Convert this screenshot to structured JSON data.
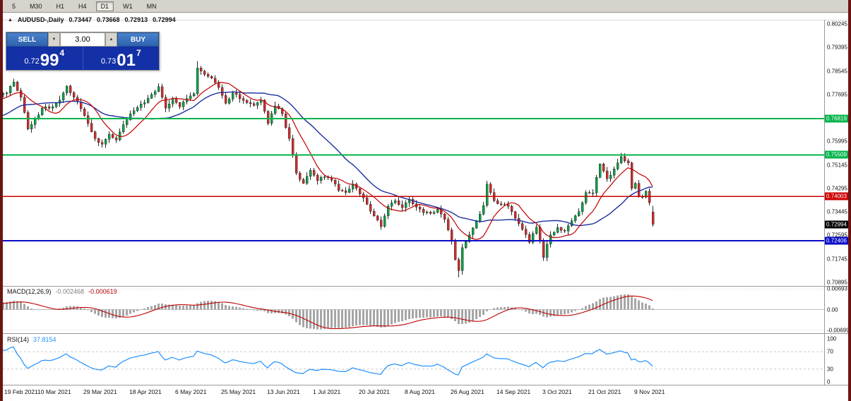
{
  "window": {
    "border_color": "#6b1414"
  },
  "toolbar": {
    "timeframes": [
      "5",
      "M30",
      "H1",
      "H4",
      "D1",
      "W1",
      "MN"
    ],
    "active": "D1"
  },
  "header": {
    "symbol": "AUDUSD-,Daily",
    "open": "0.73447",
    "high": "0.73668",
    "low": "0.72913",
    "close": "0.72994"
  },
  "icons": {
    "collapse_arrow": "▲",
    "spin_down": "▼",
    "spin_up": "▲"
  },
  "trade_panel": {
    "sell_label": "SELL",
    "buy_label": "BUY",
    "volume": "3.00",
    "sell_price": {
      "base": "0.72",
      "big": "99",
      "sup": "4"
    },
    "buy_price": {
      "base": "0.73",
      "big": "01",
      "sup": "7"
    }
  },
  "price_scale": {
    "grid_labels": [
      {
        "text": "0.80245",
        "value": 0.80245
      },
      {
        "text": "0.79395",
        "value": 0.79395
      },
      {
        "text": "0.78545",
        "value": 0.78545
      },
      {
        "text": "0.77695",
        "value": 0.77695
      },
      {
        "text": "0.75995",
        "value": 0.75995
      },
      {
        "text": "0.75145",
        "value": 0.75145
      },
      {
        "text": "0.74295",
        "value": 0.74295
      },
      {
        "text": "0.73445",
        "value": 0.73445
      },
      {
        "text": "0.72595",
        "value": 0.72595
      },
      {
        "text": "0.71745",
        "value": 0.71745
      },
      {
        "text": "0.70895",
        "value": 0.70895
      }
    ],
    "line_badges": [
      {
        "text": "0.76819",
        "value": 0.76819,
        "color": "#00b44a"
      },
      {
        "text": "0.75509",
        "value": 0.75509,
        "color": "#00b44a"
      },
      {
        "text": "0.74003",
        "value": 0.74003,
        "color": "#cc0000"
      },
      {
        "text": "0.72994",
        "value": 0.72994,
        "color": "#000000"
      },
      {
        "text": "0.72406",
        "value": 0.72406,
        "color": "#0a0ac8"
      }
    ]
  },
  "price_lines": [
    {
      "value": 0.76819,
      "color": "#00b44a",
      "width": 2
    },
    {
      "value": 0.75509,
      "color": "#00b44a",
      "width": 2
    },
    {
      "value": 0.74003,
      "color": "#cc0000",
      "width": 1.4
    },
    {
      "value": 0.72406,
      "color": "#0a0ac8",
      "width": 2
    }
  ],
  "indicators": {
    "macd": {
      "label": "MACD(12,26,9)",
      "value_main": "-0.002468",
      "value_signal": "-0.000619",
      "scale": [
        "0.00693",
        "0.00",
        "-0.00699"
      ],
      "fast": 12,
      "slow": 26,
      "smooth": 9,
      "hist_color": "#a6a6a6",
      "signal_color": "#c00000"
    },
    "rsi": {
      "label": "RSI(14)",
      "value": "37.8154",
      "scale": [
        "100",
        "70",
        "30",
        "0"
      ],
      "period": 14,
      "levels": [
        70,
        30
      ],
      "line_color": "#1e90ff"
    }
  },
  "chart_data": {
    "type": "candlestick",
    "title": "AUDUSD-,Daily",
    "y_axis": {
      "min": 0.70895,
      "max": 0.80245,
      "tick_step": 0.0085
    },
    "x_axis": {
      "labels": [
        "19 Feb 2021",
        "10 Mar 2021",
        "29 Mar 2021",
        "18 Apr 2021",
        "6 May 2021",
        "25 May 2021",
        "13 Jun 2021",
        "1 Jul 2021",
        "20 Jul 2021",
        "8 Aug 2021",
        "26 Aug 2021",
        "14 Sep 2021",
        "3 Oct 2021",
        "21 Oct 2021",
        "9 Nov 2021"
      ],
      "bars_per_label": 13
    },
    "bar_count": 184,
    "last_candle": {
      "open": 0.73447,
      "high": 0.73668,
      "low": 0.72913,
      "close": 0.72994
    },
    "extreme_low": {
      "bar": 128,
      "price": 0.7108
    },
    "extreme_high": {
      "bar": 54,
      "price": 0.7891
    },
    "pre_anchors": [
      [
        -28,
        0.768
      ],
      [
        -20,
        0.76
      ],
      [
        -14,
        0.768
      ],
      [
        -9,
        0.774
      ],
      [
        -5,
        0.7755
      ],
      [
        -2,
        0.777
      ]
    ],
    "anchors": [
      [
        0,
        0.7775
      ],
      [
        2,
        0.7815
      ],
      [
        4,
        0.776
      ],
      [
        6,
        0.7645
      ],
      [
        8,
        0.768
      ],
      [
        10,
        0.772
      ],
      [
        13,
        0.7725
      ],
      [
        15,
        0.775
      ],
      [
        17,
        0.78
      ],
      [
        19,
        0.776
      ],
      [
        21,
        0.7718
      ],
      [
        23,
        0.7665
      ],
      [
        25,
        0.761
      ],
      [
        27,
        0.759
      ],
      [
        29,
        0.7625
      ],
      [
        31,
        0.7605
      ],
      [
        33,
        0.766
      ],
      [
        35,
        0.77
      ],
      [
        37,
        0.7722
      ],
      [
        39,
        0.774
      ],
      [
        41,
        0.777
      ],
      [
        43,
        0.7798
      ],
      [
        45,
        0.772
      ],
      [
        47,
        0.7755
      ],
      [
        49,
        0.7725
      ],
      [
        51,
        0.7755
      ],
      [
        53,
        0.7772
      ],
      [
        54,
        0.7865
      ],
      [
        56,
        0.7842
      ],
      [
        58,
        0.7828
      ],
      [
        60,
        0.7795
      ],
      [
        62,
        0.7738
      ],
      [
        64,
        0.7775
      ],
      [
        66,
        0.7755
      ],
      [
        68,
        0.774
      ],
      [
        70,
        0.773
      ],
      [
        72,
        0.775
      ],
      [
        74,
        0.7665
      ],
      [
        76,
        0.7728
      ],
      [
        78,
        0.77
      ],
      [
        80,
        0.761
      ],
      [
        82,
        0.7485
      ],
      [
        84,
        0.7448
      ],
      [
        86,
        0.7495
      ],
      [
        88,
        0.7458
      ],
      [
        90,
        0.7472
      ],
      [
        92,
        0.746
      ],
      [
        94,
        0.7422
      ],
      [
        96,
        0.7415
      ],
      [
        98,
        0.7445
      ],
      [
        100,
        0.741
      ],
      [
        102,
        0.7372
      ],
      [
        104,
        0.733
      ],
      [
        106,
        0.7292
      ],
      [
        108,
        0.7365
      ],
      [
        110,
        0.7385
      ],
      [
        112,
        0.736
      ],
      [
        114,
        0.739
      ],
      [
        116,
        0.7362
      ],
      [
        118,
        0.7342
      ],
      [
        120,
        0.734
      ],
      [
        122,
        0.7355
      ],
      [
        124,
        0.7318
      ],
      [
        126,
        0.724
      ],
      [
        127,
        0.7172
      ],
      [
        128,
        0.7132
      ],
      [
        129,
        0.7215
      ],
      [
        131,
        0.7262
      ],
      [
        133,
        0.731
      ],
      [
        135,
        0.7368
      ],
      [
        136,
        0.7445
      ],
      [
        138,
        0.7385
      ],
      [
        140,
        0.737
      ],
      [
        142,
        0.7365
      ],
      [
        144,
        0.7322
      ],
      [
        146,
        0.7282
      ],
      [
        148,
        0.7235
      ],
      [
        150,
        0.729
      ],
      [
        151,
        0.7238
      ],
      [
        152,
        0.718
      ],
      [
        153,
        0.7228
      ],
      [
        154,
        0.7262
      ],
      [
        156,
        0.7288
      ],
      [
        158,
        0.7275
      ],
      [
        160,
        0.7312
      ],
      [
        162,
        0.7346
      ],
      [
        164,
        0.7415
      ],
      [
        166,
        0.7414
      ],
      [
        168,
        0.7518
      ],
      [
        170,
        0.7465
      ],
      [
        172,
        0.75
      ],
      [
        174,
        0.7545
      ],
      [
        176,
        0.7522
      ],
      [
        177,
        0.743
      ],
      [
        178,
        0.7448
      ],
      [
        179,
        0.74
      ],
      [
        180,
        0.7398
      ],
      [
        181,
        0.742
      ],
      [
        182,
        0.7378
      ],
      [
        183,
        0.72994
      ]
    ],
    "up_color": "#0fa04a",
    "down_color": "#cc2f2f",
    "wick_color": "#2a2a2a",
    "ma_fast": {
      "period": 10,
      "color": "#c00000"
    },
    "ma_slow": {
      "period": 24,
      "color": "#1c2f9e"
    }
  }
}
